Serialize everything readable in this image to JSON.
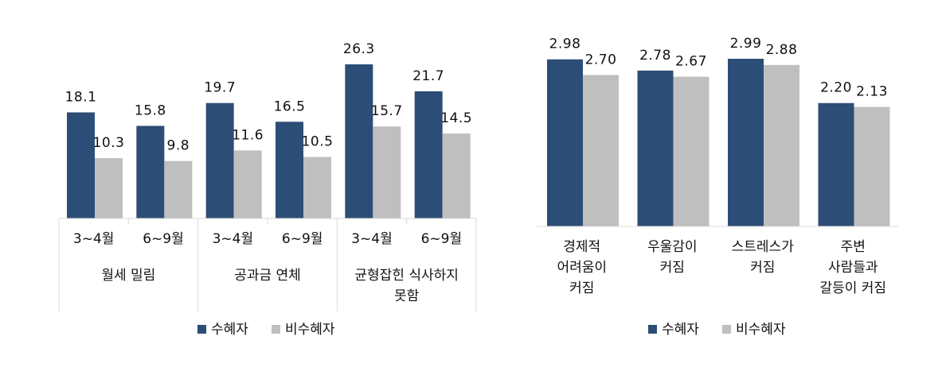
{
  "colors": {
    "recipient": "#2c4d75",
    "non_recipient": "#bfbfbf",
    "axis": "#d9d9d9"
  },
  "chart_data": [
    {
      "type": "bar",
      "categories": [
        "3~4월",
        "6~9월",
        "3~4월",
        "6~9월",
        "3~4월",
        "6~9월"
      ],
      "groups": [
        {
          "label": [
            "월세 밀림"
          ]
        },
        {
          "label": [
            "공과금 연체"
          ]
        },
        {
          "label": [
            "균형잡힌 식사하지",
            "못함"
          ]
        }
      ],
      "series": [
        {
          "name": "수혜자",
          "values": [
            18.1,
            15.8,
            19.7,
            16.5,
            26.3,
            21.7
          ],
          "labels": [
            "18.1",
            "15.8",
            "19.7",
            "16.5",
            "26.3",
            "21.7"
          ]
        },
        {
          "name": "비수혜자",
          "values": [
            10.3,
            9.8,
            11.6,
            10.5,
            15.7,
            14.5
          ],
          "labels": [
            "10.3",
            "9.8",
            "11.6",
            "10.5",
            "15.7",
            "14.5"
          ]
        }
      ],
      "legend": "bottom",
      "grid": false
    },
    {
      "type": "bar",
      "categories": [
        [
          "경제적",
          "어려움이",
          "커짐"
        ],
        [
          "우울감이",
          "커짐"
        ],
        [
          "스트레스가",
          "커짐"
        ],
        [
          "주변",
          "사람들과",
          "갈등이 커짐"
        ]
      ],
      "series": [
        {
          "name": "수혜자",
          "values": [
            2.98,
            2.78,
            2.99,
            2.2
          ],
          "labels": [
            "2.98",
            "2.78",
            "2.99",
            "2.20"
          ]
        },
        {
          "name": "비수혜자",
          "values": [
            2.7,
            2.67,
            2.88,
            2.13
          ],
          "labels": [
            "2.70",
            "2.67",
            "2.88",
            "2.13"
          ]
        }
      ],
      "legend": "bottom",
      "grid": false
    }
  ]
}
